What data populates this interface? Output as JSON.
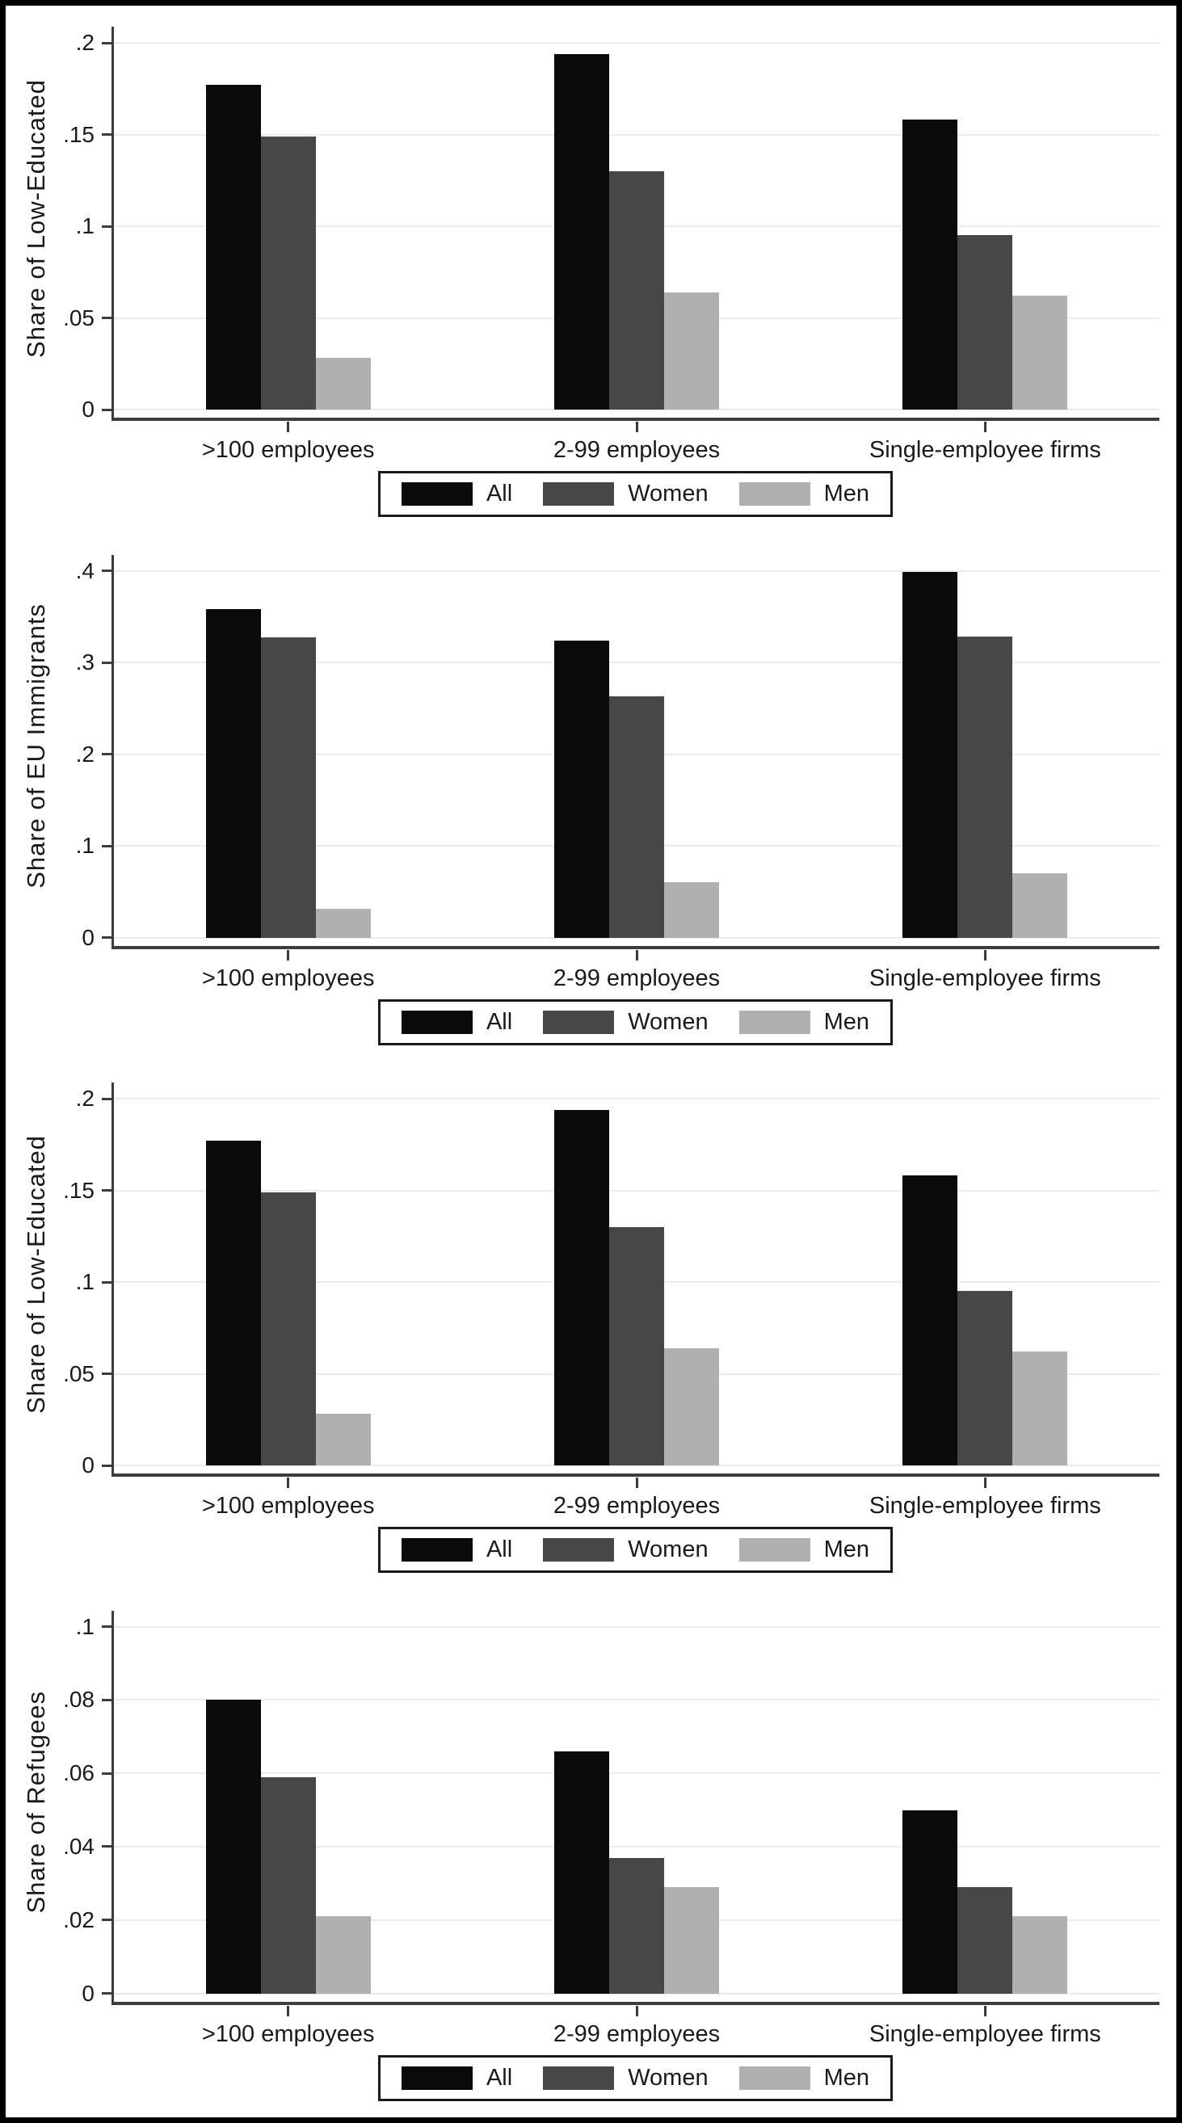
{
  "figure": {
    "description": "Four stacked grouped bar chart panels comparing firm-size categories by All / Women / Men",
    "background": "#ffffff",
    "frame_color": "#000000"
  },
  "colors": {
    "all": "#0a0a0a",
    "women": "#474747",
    "men": "#b0b0b0",
    "gridline": "#ebebeb",
    "axis": "#3c3c3c",
    "text": "#1a1a1a",
    "legend_border": "#1a1a1a"
  },
  "chart_data": [
    {
      "type": "bar",
      "title": "",
      "xlabel": "",
      "ylabel": "Share of Low-Educated",
      "categories": [
        ">100 employees",
        "2-99 employees",
        "Single-employee firms"
      ],
      "series": [
        {
          "name": "All",
          "color": "#0a0a0a",
          "values": [
            0.177,
            0.194,
            0.158
          ]
        },
        {
          "name": "Women",
          "color": "#474747",
          "values": [
            0.149,
            0.13,
            0.095
          ]
        },
        {
          "name": "Men",
          "color": "#b0b0b0",
          "values": [
            0.028,
            0.064,
            0.062
          ]
        }
      ],
      "ylim": [
        0,
        0.2
      ],
      "yticks": [
        {
          "v": 0,
          "label": "0"
        },
        {
          "v": 0.05,
          "label": ".05"
        },
        {
          "v": 0.1,
          "label": ".1"
        },
        {
          "v": 0.15,
          "label": ".15"
        },
        {
          "v": 0.2,
          "label": ".2"
        }
      ],
      "grid": true,
      "legend_position": "bottom",
      "legend": [
        "All",
        "Women",
        "Men"
      ]
    },
    {
      "type": "bar",
      "title": "",
      "xlabel": "",
      "ylabel": "Share of EU Immigrants",
      "categories": [
        ">100 employees",
        "2-99 employees",
        "Single-employee firms"
      ],
      "series": [
        {
          "name": "All",
          "color": "#0a0a0a",
          "values": [
            0.358,
            0.324,
            0.399
          ]
        },
        {
          "name": "Women",
          "color": "#474747",
          "values": [
            0.327,
            0.263,
            0.328
          ]
        },
        {
          "name": "Men",
          "color": "#b0b0b0",
          "values": [
            0.031,
            0.06,
            0.07
          ]
        }
      ],
      "ylim": [
        0,
        0.4
      ],
      "yticks": [
        {
          "v": 0,
          "label": "0"
        },
        {
          "v": 0.1,
          "label": ".1"
        },
        {
          "v": 0.2,
          "label": ".2"
        },
        {
          "v": 0.3,
          "label": ".3"
        },
        {
          "v": 0.4,
          "label": ".4"
        }
      ],
      "grid": true,
      "legend_position": "bottom",
      "legend": [
        "All",
        "Women",
        "Men"
      ]
    },
    {
      "type": "bar",
      "title": "",
      "xlabel": "",
      "ylabel": "Share of Low-Educated",
      "categories": [
        ">100 employees",
        "2-99 employees",
        "Single-employee firms"
      ],
      "series": [
        {
          "name": "All",
          "color": "#0a0a0a",
          "values": [
            0.177,
            0.194,
            0.158
          ]
        },
        {
          "name": "Women",
          "color": "#474747",
          "values": [
            0.149,
            0.13,
            0.095
          ]
        },
        {
          "name": "Men",
          "color": "#b0b0b0",
          "values": [
            0.028,
            0.064,
            0.062
          ]
        }
      ],
      "ylim": [
        0,
        0.2
      ],
      "yticks": [
        {
          "v": 0,
          "label": "0"
        },
        {
          "v": 0.05,
          "label": ".05"
        },
        {
          "v": 0.1,
          "label": ".1"
        },
        {
          "v": 0.15,
          "label": ".15"
        },
        {
          "v": 0.2,
          "label": ".2"
        }
      ],
      "grid": true,
      "legend_position": "bottom",
      "legend": [
        "All",
        "Women",
        "Men"
      ]
    },
    {
      "type": "bar",
      "title": "",
      "xlabel": "",
      "ylabel": "Share of Refugees",
      "categories": [
        ">100 employees",
        "2-99 employees",
        "Single-employee firms"
      ],
      "series": [
        {
          "name": "All",
          "color": "#0a0a0a",
          "values": [
            0.08,
            0.066,
            0.05
          ]
        },
        {
          "name": "Women",
          "color": "#474747",
          "values": [
            0.059,
            0.037,
            0.029
          ]
        },
        {
          "name": "Men",
          "color": "#b0b0b0",
          "values": [
            0.021,
            0.029,
            0.021
          ]
        }
      ],
      "ylim": [
        0,
        0.1
      ],
      "yticks": [
        {
          "v": 0,
          "label": "0"
        },
        {
          "v": 0.02,
          "label": ".02"
        },
        {
          "v": 0.04,
          "label": ".04"
        },
        {
          "v": 0.06,
          "label": ".06"
        },
        {
          "v": 0.08,
          "label": ".08"
        },
        {
          "v": 0.1,
          "label": ".1"
        }
      ],
      "grid": true,
      "legend_position": "bottom",
      "legend": [
        "All",
        "Women",
        "Men"
      ]
    }
  ]
}
